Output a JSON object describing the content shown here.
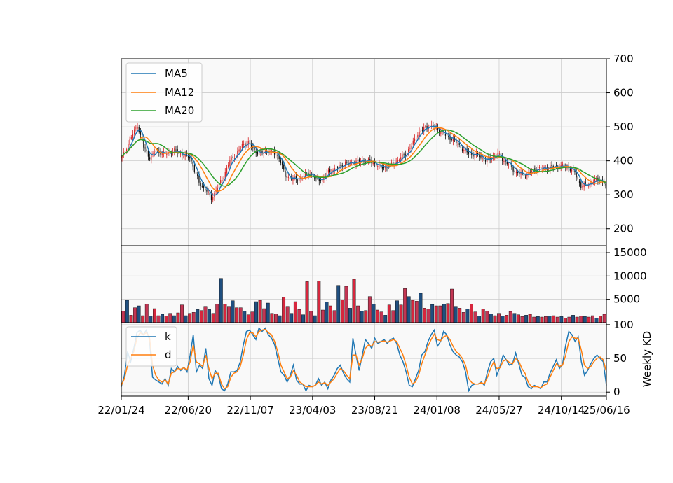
{
  "chart_data": [
    {
      "type": "candlestick",
      "panel": "price",
      "ylim": [
        150,
        700
      ],
      "yticks": [
        200,
        300,
        400,
        500,
        600,
        700
      ],
      "grid": true,
      "legend_placement": "top-left",
      "up_color": "#d62728",
      "down_color": "#111111",
      "series": [
        {
          "name": "MA5",
          "color": "#1f77b4"
        },
        {
          "name": "MA12",
          "color": "#ff7f0e"
        },
        {
          "name": "MA20",
          "color": "#2ca02c"
        }
      ],
      "close_anchors": [
        [
          0,
          410
        ],
        [
          3,
          440
        ],
        [
          6,
          470
        ],
        [
          10,
          505
        ],
        [
          14,
          440
        ],
        [
          18,
          410
        ],
        [
          22,
          430
        ],
        [
          28,
          420
        ],
        [
          34,
          430
        ],
        [
          38,
          420
        ],
        [
          44,
          410
        ],
        [
          50,
          335
        ],
        [
          55,
          310
        ],
        [
          58,
          290
        ],
        [
          60,
          305
        ],
        [
          63,
          330
        ],
        [
          66,
          355
        ],
        [
          70,
          400
        ],
        [
          74,
          420
        ],
        [
          78,
          445
        ],
        [
          82,
          455
        ],
        [
          86,
          430
        ],
        [
          90,
          420
        ],
        [
          94,
          430
        ],
        [
          98,
          425
        ],
        [
          102,
          410
        ],
        [
          106,
          355
        ],
        [
          110,
          348
        ],
        [
          114,
          345
        ],
        [
          118,
          355
        ],
        [
          122,
          365
        ],
        [
          126,
          345
        ],
        [
          130,
          345
        ],
        [
          134,
          368
        ],
        [
          138,
          375
        ],
        [
          144,
          390
        ],
        [
          150,
          395
        ],
        [
          156,
          400
        ],
        [
          160,
          400
        ],
        [
          164,
          392
        ],
        [
          168,
          380
        ],
        [
          172,
          383
        ],
        [
          176,
          390
        ],
        [
          180,
          405
        ],
        [
          184,
          420
        ],
        [
          188,
          445
        ],
        [
          192,
          480
        ],
        [
          196,
          495
        ],
        [
          200,
          505
        ],
        [
          206,
          490
        ],
        [
          210,
          475
        ],
        [
          214,
          465
        ],
        [
          218,
          450
        ],
        [
          222,
          430
        ],
        [
          226,
          420
        ],
        [
          232,
          415
        ],
        [
          236,
          400
        ],
        [
          240,
          410
        ],
        [
          244,
          420
        ],
        [
          248,
          400
        ],
        [
          252,
          385
        ],
        [
          256,
          365
        ],
        [
          262,
          358
        ],
        [
          268,
          375
        ],
        [
          274,
          378
        ],
        [
          280,
          382
        ],
        [
          286,
          385
        ],
        [
          290,
          380
        ],
        [
          294,
          365
        ],
        [
          298,
          325
        ],
        [
          302,
          330
        ],
        [
          306,
          340
        ],
        [
          310,
          345
        ],
        [
          314,
          330
        ]
      ]
    },
    {
      "type": "bar",
      "panel": "volume",
      "ylim": [
        0,
        16500
      ],
      "yticks": [
        5000,
        10000,
        15000
      ],
      "grid": true,
      "values": [
        2500,
        4800,
        1600,
        3200,
        3600,
        1500,
        4000,
        1400,
        3000,
        1500,
        1800,
        1400,
        2000,
        1500,
        2100,
        3800,
        1500,
        2000,
        2200,
        2800,
        2600,
        3500,
        2800,
        2000,
        4000,
        9500,
        4000,
        3500,
        4700,
        3200,
        3200,
        2500,
        1700,
        2300,
        4500,
        4800,
        3000,
        4200,
        2000,
        1900,
        1500,
        5500,
        3500,
        2000,
        4500,
        2800,
        1700,
        8800,
        2500,
        1500,
        8900,
        2700,
        4400,
        3600,
        2600,
        8000,
        4900,
        7800,
        3100,
        9300,
        3600,
        2500,
        2600,
        5600,
        4000,
        2700,
        2300,
        1600,
        3800,
        2600,
        4700,
        3800,
        7300,
        5600,
        4800,
        4600,
        6300,
        3100,
        2900,
        3900,
        3600,
        3600,
        4000,
        4100,
        7200,
        3500,
        3100,
        2200,
        2900,
        4000,
        2300,
        1400,
        2900,
        2500,
        1900,
        1500,
        2000,
        1400,
        1600,
        2400,
        2000,
        1700,
        1300,
        1600,
        1800,
        1200,
        1300,
        1200,
        1300,
        1400,
        1500,
        1200,
        1300,
        1000,
        1200,
        1600,
        1200,
        1400,
        1300,
        1200,
        1500,
        1000,
        1400,
        1800
      ]
    },
    {
      "type": "line",
      "panel": "weekly_kd",
      "ylabel": "Weekly KD",
      "ylim": [
        -6,
        103
      ],
      "yticks": [
        0,
        50,
        100
      ],
      "grid": true,
      "legend_placement": "top-left",
      "x_tick_labels": [
        "22/01/24",
        "22/06/20",
        "22/11/07",
        "23/04/03",
        "23/08/21",
        "24/01/08",
        "24/05/27",
        "24/10/14",
        "25/06/16"
      ],
      "x_tick_index": [
        0,
        21,
        41,
        61,
        81,
        101,
        121,
        141,
        178
      ],
      "series": [
        {
          "name": "k",
          "color": "#1f77b4",
          "values": [
            8,
            25,
            60,
            45,
            65,
            88,
            92,
            85,
            92,
            78,
            22,
            18,
            15,
            12,
            20,
            10,
            35,
            30,
            38,
            32,
            37,
            30,
            55,
            85,
            30,
            40,
            35,
            65,
            20,
            10,
            32,
            25,
            5,
            2,
            12,
            30,
            30,
            32,
            45,
            70,
            90,
            92,
            85,
            78,
            95,
            90,
            95,
            85,
            80,
            70,
            50,
            30,
            25,
            15,
            25,
            40,
            18,
            12,
            12,
            2,
            10,
            8,
            10,
            20,
            10,
            15,
            5,
            18,
            25,
            35,
            40,
            28,
            20,
            15,
            80,
            55,
            32,
            55,
            78,
            72,
            65,
            80,
            72,
            75,
            78,
            72,
            78,
            80,
            72,
            55,
            45,
            30,
            10,
            8,
            20,
            32,
            55,
            60,
            75,
            85,
            92,
            68,
            75,
            90,
            85,
            70,
            60,
            55,
            52,
            45,
            30,
            2,
            10,
            12,
            12,
            15,
            10,
            30,
            45,
            50,
            25,
            38,
            55,
            48,
            40,
            42,
            58,
            42,
            25,
            22,
            8,
            5,
            10,
            8,
            5,
            15,
            15,
            28,
            38,
            48,
            35,
            42,
            70,
            90,
            85,
            75,
            82,
            45,
            25,
            32,
            42,
            50,
            55,
            50,
            45,
            10
          ]
        },
        {
          "name": "d",
          "color": "#ff7f0e",
          "values": [
            10,
            20,
            40,
            50,
            60,
            80,
            88,
            85,
            88,
            82,
            40,
            25,
            18,
            15,
            18,
            12,
            28,
            30,
            35,
            34,
            36,
            33,
            45,
            70,
            45,
            42,
            38,
            55,
            35,
            20,
            28,
            28,
            12,
            5,
            8,
            22,
            28,
            30,
            38,
            55,
            78,
            88,
            88,
            82,
            90,
            92,
            93,
            88,
            85,
            75,
            60,
            40,
            30,
            20,
            22,
            32,
            25,
            15,
            12,
            8,
            8,
            8,
            10,
            15,
            12,
            14,
            10,
            15,
            20,
            28,
            35,
            32,
            25,
            20,
            55,
            55,
            40,
            50,
            65,
            70,
            68,
            75,
            74,
            75,
            76,
            74,
            76,
            78,
            75,
            65,
            55,
            40,
            22,
            12,
            15,
            25,
            42,
            55,
            68,
            78,
            86,
            78,
            76,
            82,
            84,
            78,
            68,
            60,
            56,
            50,
            40,
            20,
            14,
            12,
            12,
            14,
            12,
            22,
            35,
            45,
            35,
            36,
            46,
            48,
            44,
            42,
            50,
            46,
            35,
            28,
            15,
            8,
            8,
            8,
            6,
            10,
            12,
            22,
            32,
            42,
            38,
            40,
            55,
            75,
            82,
            80,
            80,
            62,
            40,
            35,
            38,
            45,
            50,
            52,
            48,
            30
          ]
        }
      ]
    }
  ]
}
